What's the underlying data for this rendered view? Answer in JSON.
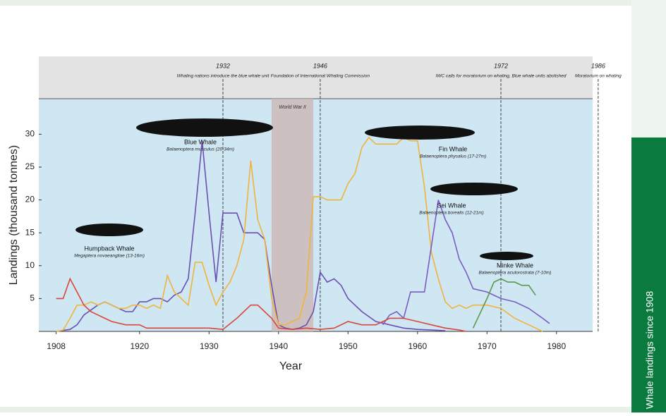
{
  "chart_data": {
    "type": "line",
    "side_title": "Whale landings since 1908",
    "x_label": "Year",
    "y_label": "Landings (thousand tonnes)",
    "xlim": [
      1905.5,
      1985.2
    ],
    "ylim": [
      0,
      35.4
    ],
    "xticks": [
      1908,
      1920,
      1930,
      1940,
      1950,
      1960,
      1970,
      1980
    ],
    "yticks": [
      5,
      10,
      15,
      20,
      25,
      30
    ],
    "shaded": {
      "label": "World War II",
      "from": 1939,
      "to": 1945
    },
    "events": [
      {
        "year": 1932,
        "text": "Whaling nations introduce the blue whale unit"
      },
      {
        "year": 1946,
        "text": "Foundation of International Whaling Commission"
      },
      {
        "year": 1972,
        "text": "IWC calls for moratorium on whaling, Blue whale units abolished"
      },
      {
        "year": 1986,
        "text": "Moratorium on whaling"
      }
    ],
    "series": [
      {
        "name": "Blue Whale",
        "species": "Balaenoptera musculus (20-34m)",
        "color": "#6a4fb3",
        "x": [
          1908,
          1910,
          1911,
          1912,
          1914,
          1915,
          1916,
          1917,
          1918,
          1919,
          1920,
          1921,
          1922,
          1923,
          1924,
          1925,
          1926,
          1927,
          1928,
          1929,
          1930,
          1931,
          1932,
          1933,
          1934,
          1935,
          1936,
          1937,
          1938,
          1939,
          1940,
          1941,
          1942,
          1943,
          1944,
          1945,
          1946,
          1947,
          1948,
          1949,
          1950,
          1952,
          1954,
          1956,
          1958,
          1960,
          1962,
          1964
        ],
        "values": [
          0,
          0.3,
          1,
          2.5,
          4,
          4.5,
          4,
          3.5,
          3,
          3,
          4.5,
          4.5,
          5,
          5,
          4.5,
          5.5,
          6,
          8,
          18,
          29,
          18,
          7.5,
          18,
          18,
          18,
          15,
          15,
          15,
          14,
          7,
          1,
          0.5,
          0.3,
          0.5,
          1,
          3,
          9,
          7.5,
          8,
          7,
          5,
          3,
          1.5,
          1,
          0.5,
          0.3,
          0.2,
          0.1
        ]
      },
      {
        "name": "Fin Whale",
        "species": "Balaenoptera physalus (17-27m)",
        "color": "#f0b43c",
        "x": [
          1908,
          1909,
          1910,
          1911,
          1912,
          1913,
          1914,
          1915,
          1916,
          1917,
          1918,
          1919,
          1920,
          1921,
          1922,
          1923,
          1924,
          1925,
          1926,
          1927,
          1928,
          1929,
          1930,
          1931,
          1932,
          1933,
          1934,
          1935,
          1936,
          1937,
          1938,
          1939,
          1940,
          1941,
          1942,
          1943,
          1944,
          1945,
          1946,
          1947,
          1948,
          1949,
          1950,
          1951,
          1952,
          1953,
          1954,
          1955,
          1956,
          1957,
          1958,
          1959,
          1960,
          1961,
          1962,
          1963,
          1964,
          1965,
          1966,
          1967,
          1968,
          1970,
          1972,
          1974,
          1976,
          1978
        ],
        "values": [
          0,
          0.2,
          2,
          4,
          4,
          4.5,
          4,
          4.5,
          4,
          3.5,
          3.5,
          4,
          4,
          3.5,
          4,
          3.5,
          8.5,
          6,
          5,
          4,
          10.5,
          10.5,
          7,
          4,
          6,
          7.5,
          10,
          14,
          26,
          17,
          14,
          5,
          1,
          1,
          1.5,
          2,
          6,
          20.5,
          20.5,
          20,
          20,
          20,
          22.5,
          24,
          28,
          29.5,
          28.5,
          28.5,
          28.5,
          28.5,
          29.5,
          29,
          29,
          22,
          12,
          8,
          4.5,
          3.5,
          4,
          3.5,
          4,
          4,
          3.5,
          2,
          1,
          0
        ]
      },
      {
        "name": "Sei Whale",
        "species": "Balaenoptera borealis (12-21m)",
        "color": "#7b5cc4",
        "x": [
          1955,
          1956,
          1957,
          1958,
          1959,
          1960,
          1961,
          1962,
          1963,
          1964,
          1965,
          1966,
          1967,
          1968,
          1970,
          1972,
          1974,
          1976,
          1978,
          1979
        ],
        "values": [
          1,
          2.5,
          3,
          2,
          6,
          6,
          6,
          13,
          20,
          17,
          15,
          11,
          9,
          6.5,
          6,
          5,
          4.5,
          3.5,
          2,
          1.2
        ]
      },
      {
        "name": "Minke Whale",
        "species": "Balaenoptera acutorostrata (7-10m)",
        "color": "#5a9a4a",
        "x": [
          1968,
          1970,
          1971,
          1972,
          1973,
          1974,
          1975,
          1976,
          1977
        ],
        "values": [
          0.5,
          5,
          7.5,
          8,
          7.5,
          7.5,
          7,
          7,
          5.5
        ]
      },
      {
        "name": "Humpback Whale",
        "species": "Megaptera novaeangliae (13-16m)",
        "color": "#d9463c",
        "x": [
          1908,
          1909,
          1910,
          1911,
          1912,
          1913,
          1914,
          1915,
          1916,
          1918,
          1920,
          1921,
          1924,
          1928,
          1930,
          1932,
          1934,
          1935,
          1936,
          1937,
          1938,
          1939,
          1940,
          1942,
          1944,
          1946,
          1948,
          1950,
          1952,
          1954,
          1956,
          1958,
          1960,
          1962,
          1964,
          1966,
          1967
        ],
        "values": [
          5,
          5,
          8,
          6,
          4,
          3,
          2.5,
          2,
          1.5,
          1,
          1,
          0.5,
          0.5,
          0.5,
          0.5,
          0.3,
          2,
          3,
          4,
          4,
          3,
          2,
          0.5,
          0.3,
          0.5,
          0.3,
          0.5,
          1.5,
          1,
          1,
          2,
          2,
          1.5,
          1,
          0.5,
          0.2,
          0
        ]
      }
    ]
  }
}
